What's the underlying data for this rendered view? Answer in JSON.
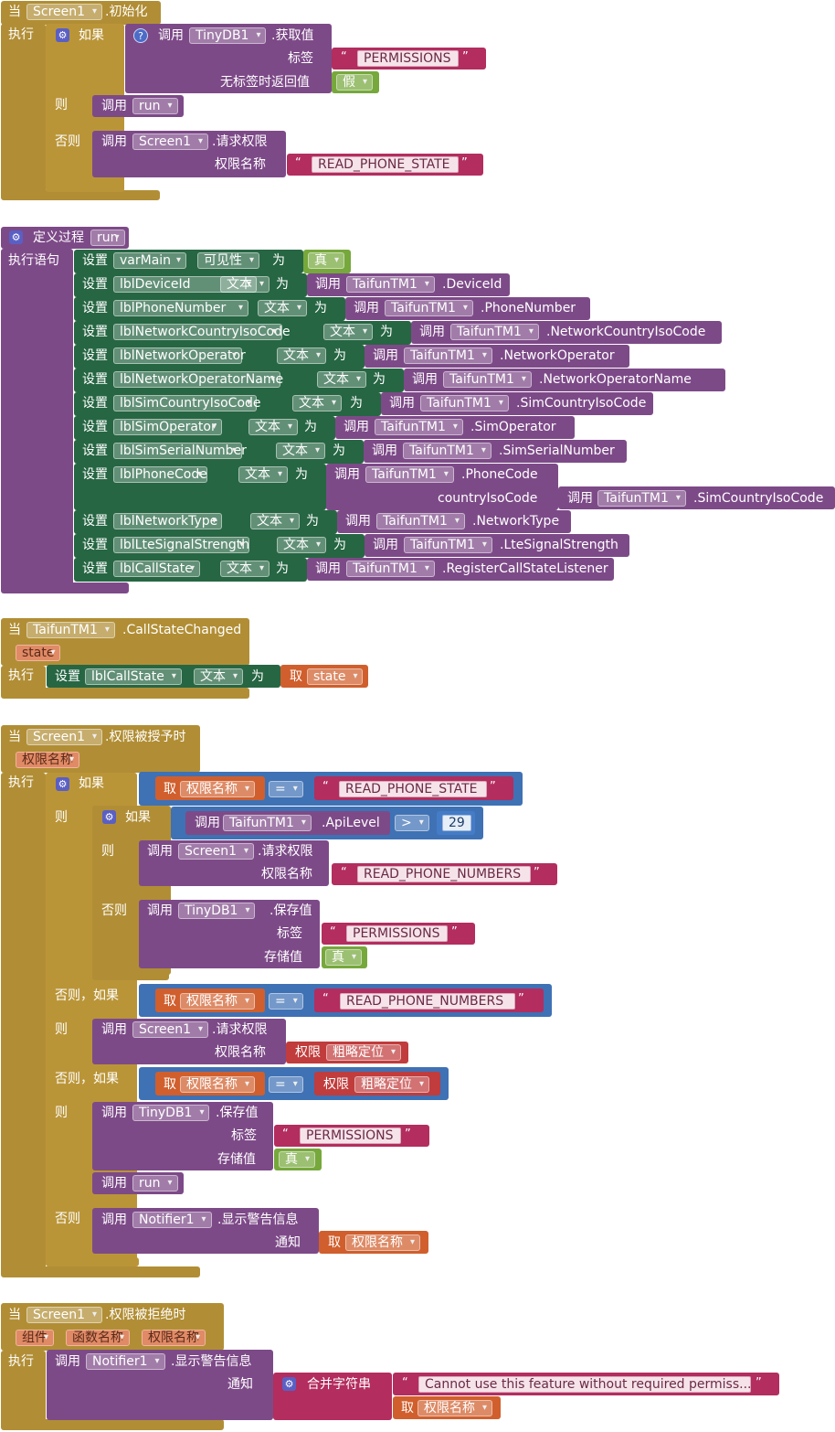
{
  "kw": {
    "when": "当",
    "do": "执行",
    "if": "如果",
    "then": "则",
    "else": "否则",
    "elseif": "否则，如果",
    "call": "调用",
    "set": "设置",
    "to": "为",
    "get": "取",
    "defproc": "定义过程",
    "do_statements": "执行语句"
  },
  "b1": {
    "component": "Screen1",
    "event": ".初始化",
    "component2": "TinyDB1",
    "method": ".获取值",
    "tag_label": "标签",
    "tag": "PERMISSIONS",
    "default_label": "无标签时返回值",
    "default": "假",
    "run": "run",
    "method2": ".请求权限",
    "perm_label": "权限名称",
    "perm": "READ_PHONE_STATE"
  },
  "b2": {
    "proc": "run",
    "rows": [
      {
        "comp": "varMain",
        "prop": "可见性",
        "target": "真",
        "kind": "logic"
      },
      {
        "comp": "lblDeviceId",
        "prop": "文本",
        "call_comp": "TaifunTM1",
        "method": ".DeviceId",
        "kind": "call"
      },
      {
        "comp": "lblPhoneNumber",
        "prop": "文本",
        "call_comp": "TaifunTM1",
        "method": ".PhoneNumber",
        "kind": "call"
      },
      {
        "comp": "lblNetworkCountryIsoCode",
        "prop": "文本",
        "call_comp": "TaifunTM1",
        "method": ".NetworkCountryIsoCode",
        "kind": "call"
      },
      {
        "comp": "lblNetworkOperator",
        "prop": "文本",
        "call_comp": "TaifunTM1",
        "method": ".NetworkOperator",
        "kind": "call"
      },
      {
        "comp": "lblNetworkOperatorName",
        "prop": "文本",
        "call_comp": "TaifunTM1",
        "method": ".NetworkOperatorName",
        "kind": "call"
      },
      {
        "comp": "lblSimCountryIsoCode",
        "prop": "文本",
        "call_comp": "TaifunTM1",
        "method": ".SimCountryIsoCode",
        "kind": "call"
      },
      {
        "comp": "lblSimOperator",
        "prop": "文本",
        "call_comp": "TaifunTM1",
        "method": ".SimOperator",
        "kind": "call"
      },
      {
        "comp": "lblSimSerialNumber",
        "prop": "文本",
        "call_comp": "TaifunTM1",
        "method": ".SimSerialNumber",
        "kind": "call"
      },
      {
        "comp": "lblPhoneCode",
        "prop": "文本",
        "call_comp": "TaifunTM1",
        "method": ".PhoneCode",
        "kind": "call2",
        "arg_label": "countryIsoCode",
        "arg_comp": "TaifunTM1",
        "arg_method": ".SimCountryIsoCode"
      },
      {
        "comp": "lblNetworkType",
        "prop": "文本",
        "call_comp": "TaifunTM1",
        "method": ".NetworkType",
        "kind": "call"
      },
      {
        "comp": "lblLteSignalStrength",
        "prop": "文本",
        "call_comp": "TaifunTM1",
        "method": ".LteSignalStrength",
        "kind": "call"
      },
      {
        "comp": "lblCallState",
        "prop": "文本",
        "call_comp": "TaifunTM1",
        "method": ".RegisterCallStateListener",
        "kind": "call"
      }
    ]
  },
  "b3": {
    "component": "TaifunTM1",
    "event": ".CallStateChanged",
    "param": "state",
    "comp": "lblCallState",
    "prop": "文本",
    "get_var": "state"
  },
  "b4": {
    "component": "Screen1",
    "event": ".权限被授予时",
    "param": "权限名称",
    "get_var": "权限名称",
    "eq": "=",
    "s1": "READ_PHONE_STATE",
    "comp_tm": "TaifunTM1",
    "apilevel": ".ApiLevel",
    "gt": ">",
    "num": "29",
    "screen": "Screen1",
    "req": ".请求权限",
    "perm_label": "权限名称",
    "s2": "READ_PHONE_NUMBERS",
    "tinydb": "TinyDB1",
    "store": ".保存值",
    "tag_label": "标签",
    "tag": "PERMISSIONS",
    "val_label": "存储值",
    "true": "真",
    "perm_word": "权限",
    "perm_val": "粗略定位",
    "run": "run",
    "notifier": "Notifier1",
    "alert": ".显示警告信息",
    "notice_label": "通知"
  },
  "b5": {
    "component": "Screen1",
    "event": ".权限被拒绝时",
    "params": [
      "组件",
      "函数名称",
      "权限名称"
    ],
    "notifier": "Notifier1",
    "alert": ".显示警告信息",
    "notice_label": "通知",
    "join": "合并字符串",
    "msg": "Cannot use this feature without required permiss...",
    "get_var": "权限名称"
  },
  "colors": {
    "event": "#b18e35",
    "procedure": "#7d4a88",
    "setter": "#266643",
    "text": "#b32d5e",
    "logic": "#76a83c",
    "math": "#3f71b5",
    "variable": "#d05f2d",
    "permission": "#c13c3c"
  }
}
